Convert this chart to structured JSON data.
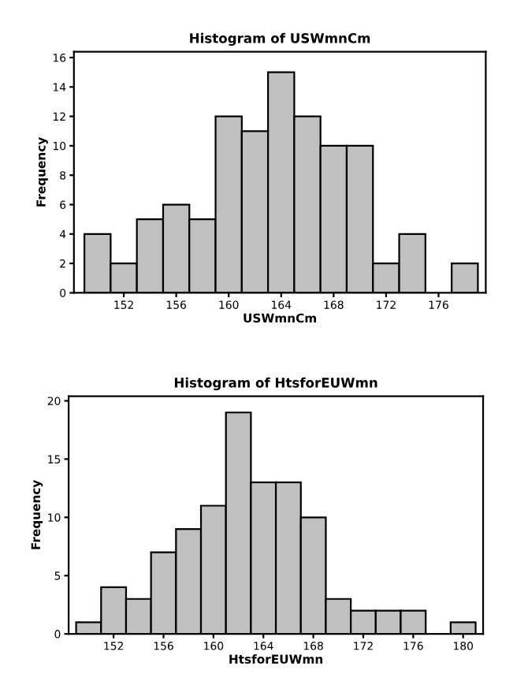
{
  "chart_data": [
    {
      "type": "histogram",
      "title": "Histogram of USWmnCm",
      "xlabel": "USWmnCm",
      "ylabel": "Frequency",
      "bins": [
        149,
        151,
        153,
        155,
        157,
        159,
        161,
        163,
        165,
        167,
        169,
        171,
        173,
        175,
        177,
        179
      ],
      "values": [
        4,
        2,
        5,
        6,
        5,
        12,
        11,
        15,
        12,
        10,
        10,
        2,
        4,
        0,
        2
      ],
      "color": "#c0c0c0",
      "xlim": [
        148.2,
        179.6
      ],
      "xticks": [
        152,
        156,
        160,
        164,
        168,
        172,
        176
      ],
      "ylim": [
        0,
        16.4
      ],
      "yticks": [
        0,
        2,
        4,
        6,
        8,
        10,
        12,
        14,
        16
      ],
      "grid": false
    },
    {
      "type": "histogram",
      "title": "Histogram of HtsforEUWmn",
      "xlabel": "HtsforEUWmn",
      "ylabel": "Frequency",
      "bins": [
        149,
        151,
        153,
        155,
        157,
        159,
        161,
        163,
        165,
        167,
        169,
        171,
        173,
        175,
        177,
        179,
        181
      ],
      "values": [
        1,
        4,
        3,
        7,
        9,
        11,
        19,
        13,
        13,
        10,
        3,
        2,
        2,
        2,
        0,
        1
      ],
      "color": "#c0c0c0",
      "xlim": [
        148.4,
        181.6
      ],
      "xticks": [
        152,
        156,
        160,
        164,
        168,
        172,
        176,
        180
      ],
      "ylim": [
        0,
        20.4
      ],
      "yticks": [
        0,
        5,
        10,
        15,
        20
      ],
      "grid": false
    }
  ]
}
